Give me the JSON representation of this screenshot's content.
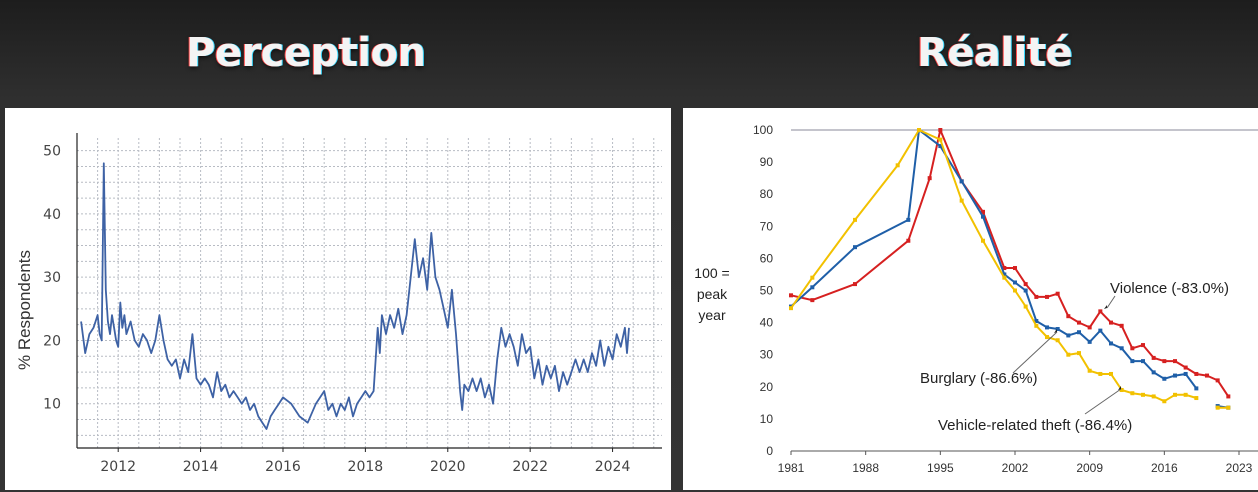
{
  "headings": {
    "left": "Perception",
    "right": "Réalité"
  },
  "chart_data": [
    {
      "type": "line",
      "title": "",
      "xlabel": "",
      "ylabel": "% Respondents",
      "xlim": [
        2011.0,
        2025.2
      ],
      "ylim": [
        3,
        52
      ],
      "xticks": [
        2012,
        2014,
        2016,
        2018,
        2020,
        2022,
        2024
      ],
      "yticks": [
        10,
        20,
        30,
        40,
        50
      ],
      "grid": true,
      "color": "#3e62a5",
      "series": [
        {
          "points": [
            [
              2011.1,
              23
            ],
            [
              2011.2,
              18
            ],
            [
              2011.3,
              21
            ],
            [
              2011.4,
              22
            ],
            [
              2011.5,
              24
            ],
            [
              2011.55,
              21
            ],
            [
              2011.6,
              20
            ],
            [
              2011.65,
              48
            ],
            [
              2011.7,
              28
            ],
            [
              2011.75,
              23
            ],
            [
              2011.8,
              21
            ],
            [
              2011.85,
              24
            ],
            [
              2011.9,
              22
            ],
            [
              2011.95,
              20
            ],
            [
              2012.0,
              19
            ],
            [
              2012.05,
              26
            ],
            [
              2012.1,
              22
            ],
            [
              2012.15,
              24
            ],
            [
              2012.2,
              21
            ],
            [
              2012.3,
              23
            ],
            [
              2012.4,
              20
            ],
            [
              2012.5,
              19
            ],
            [
              2012.6,
              21
            ],
            [
              2012.7,
              20
            ],
            [
              2012.8,
              18
            ],
            [
              2012.9,
              20
            ],
            [
              2013.0,
              24
            ],
            [
              2013.1,
              20
            ],
            [
              2013.2,
              17
            ],
            [
              2013.3,
              16
            ],
            [
              2013.4,
              17
            ],
            [
              2013.5,
              14
            ],
            [
              2013.6,
              17
            ],
            [
              2013.7,
              15
            ],
            [
              2013.8,
              21
            ],
            [
              2013.9,
              14
            ],
            [
              2014.0,
              13
            ],
            [
              2014.1,
              14
            ],
            [
              2014.2,
              13
            ],
            [
              2014.3,
              11
            ],
            [
              2014.4,
              15
            ],
            [
              2014.5,
              12
            ],
            [
              2014.6,
              13
            ],
            [
              2014.7,
              11
            ],
            [
              2014.8,
              12
            ],
            [
              2014.9,
              11
            ],
            [
              2015.0,
              10
            ],
            [
              2015.1,
              11
            ],
            [
              2015.2,
              9
            ],
            [
              2015.3,
              10
            ],
            [
              2015.4,
              8
            ],
            [
              2015.5,
              7
            ],
            [
              2015.6,
              6
            ],
            [
              2015.7,
              8
            ],
            [
              2015.8,
              9
            ],
            [
              2015.9,
              10
            ],
            [
              2016.0,
              11
            ],
            [
              2016.2,
              10
            ],
            [
              2016.4,
              8
            ],
            [
              2016.6,
              7
            ],
            [
              2016.8,
              10
            ],
            [
              2017.0,
              12
            ],
            [
              2017.1,
              9
            ],
            [
              2017.2,
              10
            ],
            [
              2017.3,
              8
            ],
            [
              2017.4,
              10
            ],
            [
              2017.5,
              9
            ],
            [
              2017.6,
              11
            ],
            [
              2017.7,
              8
            ],
            [
              2017.8,
              10
            ],
            [
              2017.9,
              11
            ],
            [
              2018.0,
              12
            ],
            [
              2018.1,
              11
            ],
            [
              2018.2,
              12
            ],
            [
              2018.3,
              22
            ],
            [
              2018.35,
              18
            ],
            [
              2018.4,
              24
            ],
            [
              2018.5,
              21
            ],
            [
              2018.6,
              24
            ],
            [
              2018.7,
              22
            ],
            [
              2018.8,
              25
            ],
            [
              2018.9,
              21
            ],
            [
              2019.0,
              24
            ],
            [
              2019.1,
              30
            ],
            [
              2019.2,
              36
            ],
            [
              2019.3,
              30
            ],
            [
              2019.4,
              33
            ],
            [
              2019.5,
              28
            ],
            [
              2019.6,
              37
            ],
            [
              2019.7,
              30
            ],
            [
              2019.8,
              28
            ],
            [
              2019.9,
              25
            ],
            [
              2020.0,
              22
            ],
            [
              2020.1,
              28
            ],
            [
              2020.2,
              21
            ],
            [
              2020.3,
              12
            ],
            [
              2020.35,
              9
            ],
            [
              2020.4,
              13
            ],
            [
              2020.5,
              12
            ],
            [
              2020.6,
              14
            ],
            [
              2020.7,
              12
            ],
            [
              2020.8,
              14
            ],
            [
              2020.9,
              11
            ],
            [
              2021.0,
              13
            ],
            [
              2021.1,
              10
            ],
            [
              2021.2,
              17
            ],
            [
              2021.3,
              22
            ],
            [
              2021.4,
              19
            ],
            [
              2021.5,
              21
            ],
            [
              2021.6,
              19
            ],
            [
              2021.7,
              16
            ],
            [
              2021.8,
              21
            ],
            [
              2021.9,
              18
            ],
            [
              2022.0,
              19
            ],
            [
              2022.1,
              14
            ],
            [
              2022.2,
              17
            ],
            [
              2022.3,
              13
            ],
            [
              2022.4,
              16
            ],
            [
              2022.5,
              14
            ],
            [
              2022.6,
              16
            ],
            [
              2022.7,
              12
            ],
            [
              2022.8,
              15
            ],
            [
              2022.9,
              13
            ],
            [
              2023.0,
              15
            ],
            [
              2023.1,
              17
            ],
            [
              2023.2,
              15
            ],
            [
              2023.3,
              17
            ],
            [
              2023.4,
              15
            ],
            [
              2023.5,
              18
            ],
            [
              2023.6,
              16
            ],
            [
              2023.7,
              20
            ],
            [
              2023.8,
              16
            ],
            [
              2023.9,
              19
            ],
            [
              2024.0,
              17
            ],
            [
              2024.1,
              21
            ],
            [
              2024.2,
              19
            ],
            [
              2024.3,
              22
            ],
            [
              2024.35,
              18
            ],
            [
              2024.4,
              22
            ]
          ]
        }
      ]
    },
    {
      "type": "line",
      "title": "",
      "xlabel": "",
      "ylabel": "100 = peak year",
      "xlim": [
        1981,
        2023
      ],
      "ylim": [
        0,
        100
      ],
      "xticks": [
        1981,
        1988,
        1995,
        2002,
        2009,
        2016,
        2023
      ],
      "yticks": [
        0,
        10,
        20,
        30,
        40,
        50,
        60,
        70,
        80,
        90,
        100
      ],
      "grid": false,
      "reference_line": 100,
      "series": [
        {
          "name": "Violence (-83.0%)",
          "color": "#d62020",
          "points": [
            [
              1981,
              48.5
            ],
            [
              1983,
              47
            ],
            [
              1987,
              52
            ],
            [
              1992,
              65.5
            ],
            [
              1994,
              85
            ],
            [
              1995,
              100
            ],
            [
              1997,
              84
            ],
            [
              1999,
              74.5
            ],
            [
              2001,
              57
            ],
            [
              2002,
              57
            ],
            [
              2003,
              52
            ],
            [
              2004,
              48
            ],
            [
              2005,
              48
            ],
            [
              2006,
              49
            ],
            [
              2007,
              42
            ],
            [
              2008,
              40
            ],
            [
              2009,
              38.5
            ],
            [
              2010,
              43.5
            ],
            [
              2011,
              40
            ],
            [
              2012,
              39
            ],
            [
              2013,
              32
            ],
            [
              2014,
              33
            ],
            [
              2015,
              29
            ],
            [
              2016,
              28
            ],
            [
              2017,
              28
            ],
            [
              2018,
              26
            ],
            [
              2019,
              24
            ],
            [
              2020,
              23.5
            ],
            [
              2021,
              22
            ],
            [
              2022,
              17
            ]
          ]
        },
        {
          "name": "Burglary (-86.6%)",
          "color": "#1f5fa8",
          "points": [
            [
              1981,
              45
            ],
            [
              1983,
              51
            ],
            [
              1987,
              63.5
            ],
            [
              1992,
              72
            ],
            [
              1993,
              100
            ],
            [
              1995,
              95
            ],
            [
              1997,
              84
            ],
            [
              1999,
              73
            ],
            [
              2001,
              55
            ],
            [
              2002,
              52.5
            ],
            [
              2003,
              50
            ],
            [
              2004,
              40.5
            ],
            [
              2005,
              38.5
            ],
            [
              2006,
              38
            ],
            [
              2007,
              36
            ],
            [
              2008,
              37
            ],
            [
              2009,
              34
            ],
            [
              2010,
              37.5
            ],
            [
              2011,
              33.5
            ],
            [
              2012,
              32
            ],
            [
              2013,
              28
            ],
            [
              2014,
              28
            ],
            [
              2015,
              24.5
            ],
            [
              2016,
              22.5
            ],
            [
              2017,
              23.5
            ],
            [
              2018,
              24
            ],
            [
              2019,
              19.5
            ],
            [
              2021,
              14
            ],
            [
              2022,
              13.5
            ]
          ]
        },
        {
          "name": "Vehicle-related theft (-86.4%)",
          "color": "#f2c100",
          "points": [
            [
              1981,
              44.5
            ],
            [
              1983,
              54
            ],
            [
              1987,
              72
            ],
            [
              1991,
              89
            ],
            [
              1993,
              100
            ],
            [
              1995,
              97
            ],
            [
              1997,
              78
            ],
            [
              1999,
              65.5
            ],
            [
              2001,
              54
            ],
            [
              2002,
              50
            ],
            [
              2003,
              45
            ],
            [
              2004,
              39
            ],
            [
              2005,
              35.5
            ],
            [
              2006,
              34.5
            ],
            [
              2007,
              30
            ],
            [
              2008,
              30.5
            ],
            [
              2009,
              25
            ],
            [
              2010,
              24
            ],
            [
              2011,
              24
            ],
            [
              2012,
              19
            ],
            [
              2013,
              18
            ],
            [
              2014,
              17.5
            ],
            [
              2015,
              17
            ],
            [
              2016,
              15.5
            ],
            [
              2017,
              17.5
            ],
            [
              2018,
              17.5
            ],
            [
              2019,
              16.5
            ],
            [
              2021,
              13.5
            ],
            [
              2022,
              13.5
            ]
          ]
        }
      ],
      "annotations": [
        "Violence (-83.0%)",
        "Burglary (-86.6%)",
        "Vehicle-related theft (-86.4%)"
      ]
    }
  ]
}
